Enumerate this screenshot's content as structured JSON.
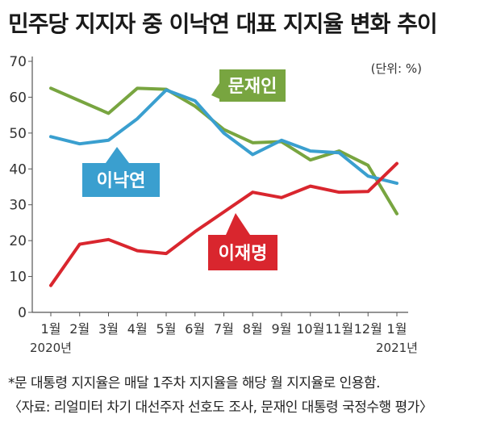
{
  "title": "민주당 지지자 중 이낙연 대표 지지율 변화 추이",
  "unit_label": "(단위: %)",
  "footnote": "*문 대통령 지지율은 매달 1주차 지지율을 해당 월 지지율로 인용함.",
  "source": "〈자료: 리얼미터 차기 대선주자 선호도 조사, 문재인 대통령 국정수행 평가〉",
  "chart_data": {
    "type": "line",
    "title": "민주당 지지자 중 이낙연 대표 지지율 변화 추이",
    "categories": [
      "1월",
      "2월",
      "3월",
      "4월",
      "5월",
      "6월",
      "7월",
      "8월",
      "9월",
      "10월",
      "11월",
      "12월",
      "1월"
    ],
    "year_labels": [
      {
        "index": 0,
        "label": "2020년"
      },
      {
        "index": 12,
        "label": "2021년"
      }
    ],
    "ylim": [
      0,
      70
    ],
    "yticks": [
      0,
      10,
      20,
      30,
      40,
      50,
      60,
      70
    ],
    "ylabel": "",
    "xlabel": "",
    "grid": false,
    "legend": "inline labels",
    "series": [
      {
        "name": "문재인",
        "color": "#78a540",
        "values": [
          62.5,
          59,
          55.5,
          62.5,
          62.2,
          57.5,
          51,
          47.3,
          47.6,
          42.5,
          45,
          41,
          27.5
        ]
      },
      {
        "name": "이낙연",
        "color": "#3a9fcf",
        "values": [
          49,
          47,
          48,
          54,
          62,
          59,
          50,
          44,
          48,
          45,
          44.5,
          38,
          36
        ]
      },
      {
        "name": "이재명",
        "color": "#d9262e",
        "values": [
          7.5,
          19,
          20.3,
          17.2,
          16.4,
          22.5,
          28,
          33.5,
          32,
          35.2,
          33.5,
          33.7,
          41.5
        ]
      }
    ]
  }
}
